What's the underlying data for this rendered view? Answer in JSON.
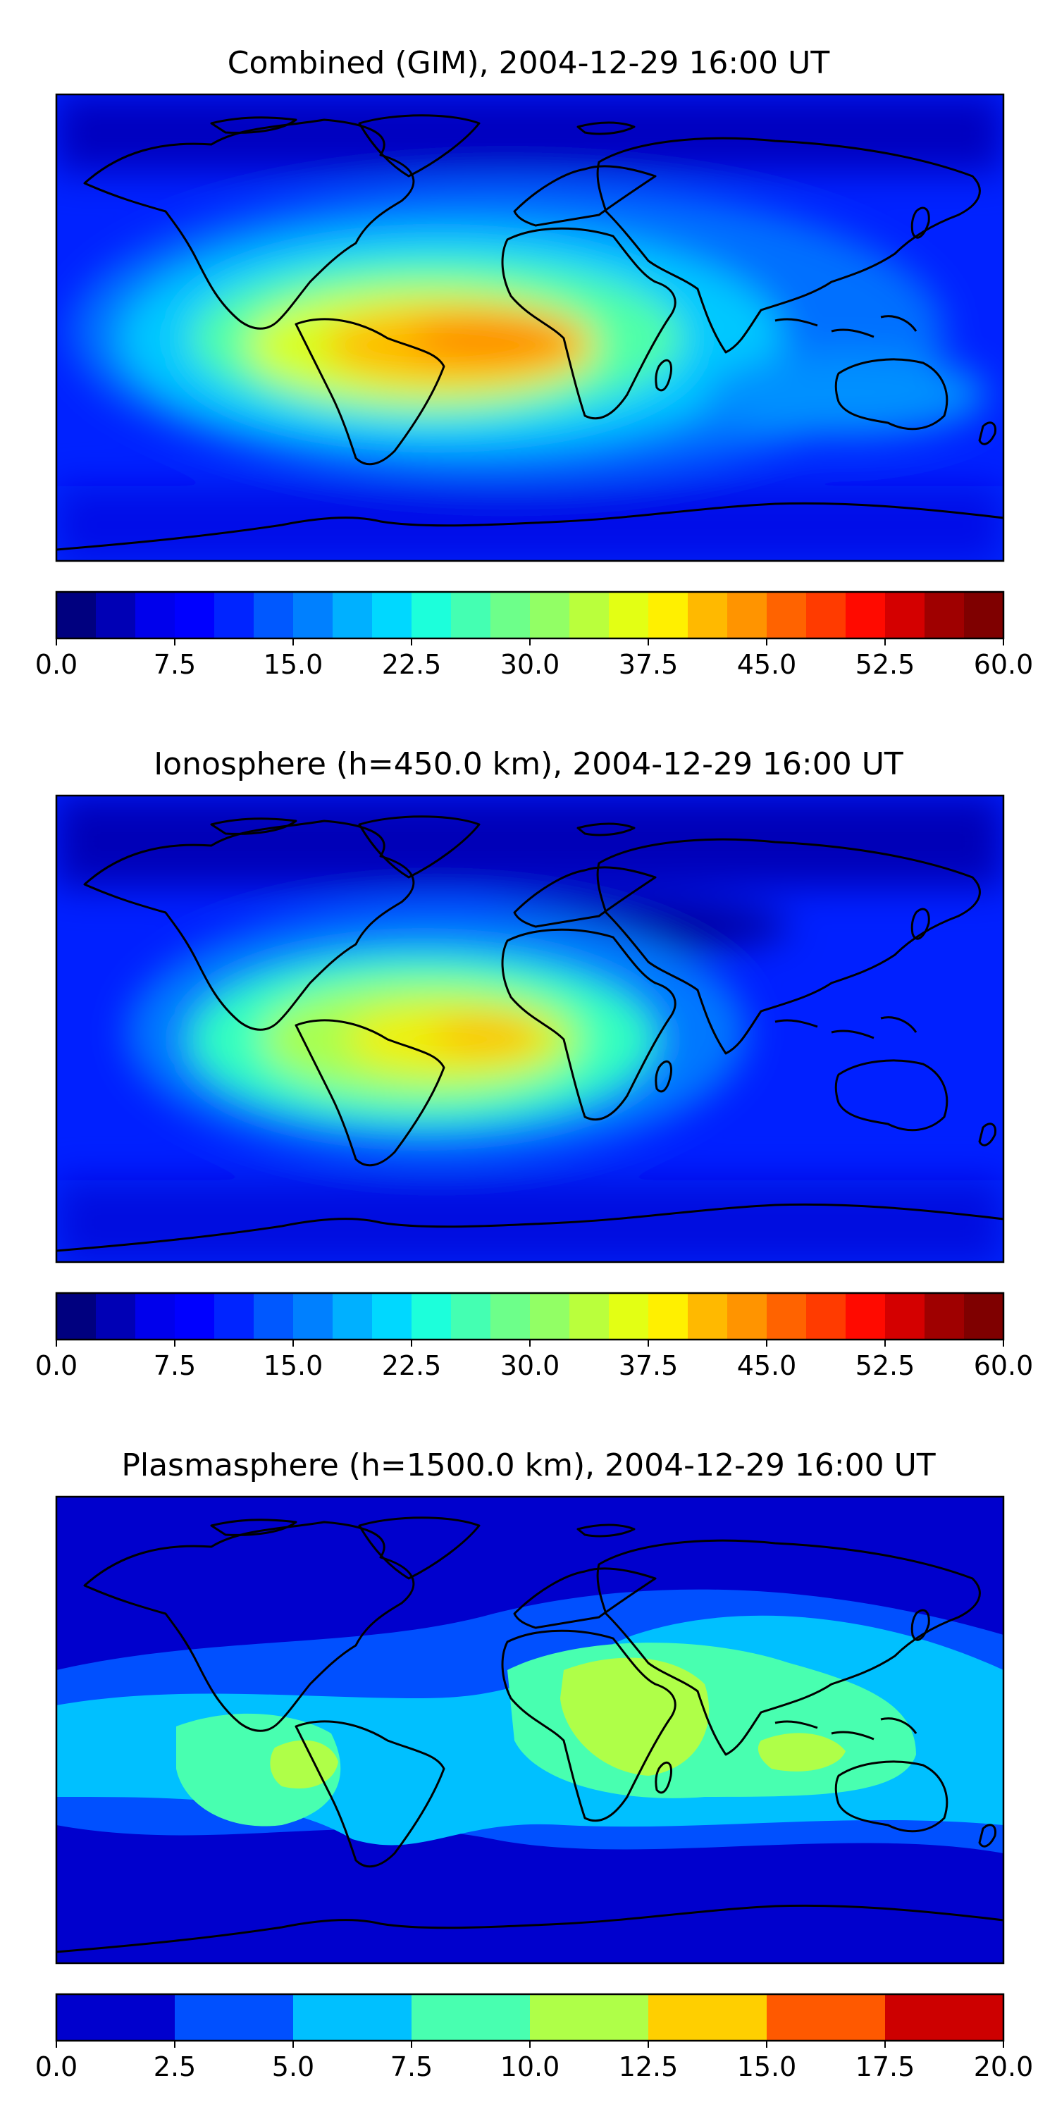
{
  "chart_data": [
    {
      "type": "heatmap",
      "title": "Combined (GIM), 2004-12-29 16:00 UT",
      "xlabel": "",
      "ylabel": "",
      "colorbar": {
        "vmin": 0.0,
        "vmax": 60.0,
        "levels": 24,
        "ticks": [
          "0.0",
          "7.5",
          "15.0",
          "22.5",
          "30.0",
          "37.5",
          "45.0",
          "52.5",
          "60.0"
        ],
        "colors": [
          "#00007f",
          "#0000b5",
          "#0000ec",
          "#0000ff",
          "#0024ff",
          "#0058ff",
          "#0080ff",
          "#00b0ff",
          "#00d8ff",
          "#1cffdb",
          "#44ffb2",
          "#6dff8a",
          "#92ff65",
          "#baff3c",
          "#e3ff14",
          "#fff000",
          "#ffb900",
          "#ff9400",
          "#ff6300",
          "#ff3b00",
          "#ff0a00",
          "#d40000",
          "#9f0000",
          "#7f0000"
        ]
      },
      "features": [
        "tec-maximum over Atlantic/Africa near equator (~45)",
        "low values at poles (~2-5)"
      ]
    },
    {
      "type": "heatmap",
      "title": "Ionosphere  (h=450.0 km), 2004-12-29 16:00 UT",
      "xlabel": "",
      "ylabel": "",
      "colorbar": {
        "vmin": 0.0,
        "vmax": 60.0,
        "levels": 24,
        "ticks": [
          "0.0",
          "7.5",
          "15.0",
          "22.5",
          "30.0",
          "37.5",
          "45.0",
          "52.5",
          "60.0"
        ],
        "colors": [
          "#00007f",
          "#0000b5",
          "#0000ec",
          "#0000ff",
          "#0024ff",
          "#0058ff",
          "#0080ff",
          "#00b0ff",
          "#00d8ff",
          "#1cffdb",
          "#44ffb2",
          "#6dff8a",
          "#92ff65",
          "#baff3c",
          "#e3ff14",
          "#fff000",
          "#ffb900",
          "#ff9400",
          "#ff6300",
          "#ff3b00",
          "#ff0a00",
          "#d40000",
          "#9f0000",
          "#7f0000"
        ]
      },
      "features": [
        "maximum over South Atlantic/Brazil (~40)",
        "low values at poles"
      ]
    },
    {
      "type": "heatmap",
      "title": "Plasmasphere (h=1500.0 km), 2004-12-29 16:00 UT",
      "xlabel": "",
      "ylabel": "",
      "colorbar": {
        "vmin": 0.0,
        "vmax": 20.0,
        "levels": 8,
        "ticks": [
          "0.0",
          "2.5",
          "5.0",
          "7.5",
          "10.0",
          "12.5",
          "15.0",
          "17.5",
          "20.0"
        ],
        "colors": [
          "#0000cd",
          "#0050ff",
          "#00c0ff",
          "#48ffb0",
          "#afff48",
          "#ffcf00",
          "#ff5900",
          "#cd0000"
        ]
      },
      "features": [
        "maxima over Africa/Arabia, Indonesia and northern South America (~10-12.5)"
      ]
    }
  ]
}
